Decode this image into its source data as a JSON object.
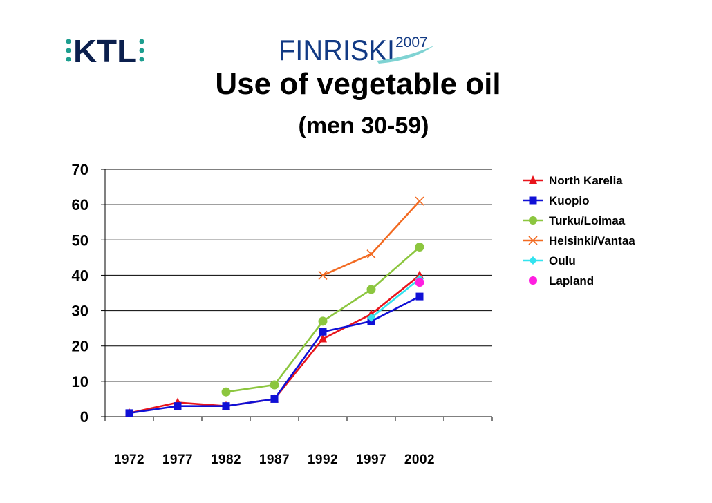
{
  "logos": {
    "left_text": "KTL",
    "center_text": "FINRISKI",
    "center_year": "2007"
  },
  "colors": {
    "logo_navy": "#0b1f4d",
    "logo_teal": "#1d9e8f",
    "finriski_blue": "#123a84",
    "finriski_swoosh": "#7fd3d3"
  },
  "chart_data": {
    "type": "line",
    "title": "Use of vegetable oil",
    "subtitle": "(men 30-59)",
    "xlabel": "",
    "ylabel": "",
    "categories": [
      "1972",
      "1977",
      "1982",
      "1987",
      "1992",
      "1997",
      "2002"
    ],
    "ylim": [
      0,
      70
    ],
    "yticks": [
      0,
      10,
      20,
      30,
      40,
      50,
      60,
      70
    ],
    "grid": "horizontal",
    "legend_position": "right",
    "series": [
      {
        "name": "North Karelia",
        "color": "#e8141b",
        "marker": "triangle",
        "values": [
          1,
          4,
          3,
          5,
          22,
          29,
          40
        ]
      },
      {
        "name": "Kuopio",
        "color": "#1010d6",
        "marker": "square",
        "values": [
          1,
          3,
          3,
          5,
          24,
          27,
          34
        ]
      },
      {
        "name": "Turku/Loimaa",
        "color": "#8cc63f",
        "marker": "circle",
        "values": [
          null,
          null,
          7,
          9,
          27,
          36,
          48
        ]
      },
      {
        "name": "Helsinki/Vantaa",
        "color": "#f26a21",
        "marker": "x",
        "values": [
          null,
          null,
          null,
          null,
          40,
          46,
          61
        ]
      },
      {
        "name": "Oulu",
        "color": "#33e3ef",
        "marker": "diamond",
        "values": [
          null,
          null,
          null,
          null,
          null,
          28,
          39
        ]
      },
      {
        "name": "Lapland",
        "color": "#ff1ee0",
        "marker": "circle",
        "values": [
          null,
          null,
          null,
          null,
          null,
          null,
          38
        ]
      }
    ]
  }
}
